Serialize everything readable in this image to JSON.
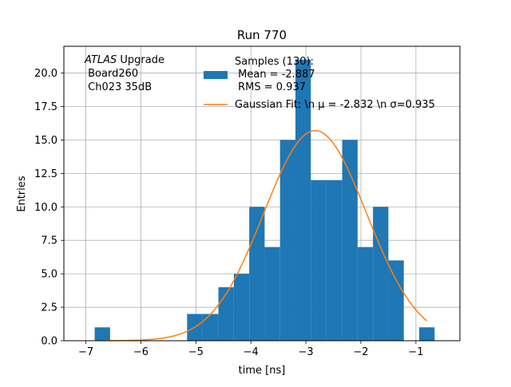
{
  "chart_data": {
    "type": "bar",
    "title": "Run 770",
    "xlabel": "time [ns]",
    "ylabel": "Entries",
    "xlim": [
      -7.4,
      -0.2
    ],
    "ylim": [
      0,
      22
    ],
    "grid": true,
    "x_ticks": [
      -7,
      -6,
      -5,
      -4,
      -3,
      -2,
      -1
    ],
    "x_tick_labels": [
      "−7",
      "−6",
      "−5",
      "−4",
      "−3",
      "−2",
      "−1"
    ],
    "y_ticks": [
      0,
      2.5,
      5,
      7.5,
      10,
      12.5,
      15,
      17.5,
      20
    ],
    "y_tick_labels": [
      "0.0",
      "2.5",
      "5.0",
      "7.5",
      "10.0",
      "12.5",
      "15.0",
      "17.5",
      "20.0"
    ],
    "bar_color": "#1f77b4",
    "fit_color": "#ff7f0e",
    "bins": [
      {
        "x0": -6.84,
        "x1": -6.56,
        "count": 1
      },
      {
        "x0": -5.16,
        "x1": -4.88,
        "count": 2
      },
      {
        "x0": -4.88,
        "x1": -4.59,
        "count": 2
      },
      {
        "x0": -4.59,
        "x1": -4.31,
        "count": 4
      },
      {
        "x0": -4.31,
        "x1": -4.03,
        "count": 5
      },
      {
        "x0": -4.03,
        "x1": -3.75,
        "count": 10
      },
      {
        "x0": -3.75,
        "x1": -3.47,
        "count": 7
      },
      {
        "x0": -3.47,
        "x1": -3.19,
        "count": 15
      },
      {
        "x0": -3.19,
        "x1": -2.91,
        "count": 21
      },
      {
        "x0": -2.91,
        "x1": -2.63,
        "count": 12
      },
      {
        "x0": -2.63,
        "x1": -2.34,
        "count": 12
      },
      {
        "x0": -2.34,
        "x1": -2.06,
        "count": 15
      },
      {
        "x0": -2.06,
        "x1": -1.78,
        "count": 7
      },
      {
        "x0": -1.78,
        "x1": -1.5,
        "count": 10
      },
      {
        "x0": -1.5,
        "x1": -1.22,
        "count": 6
      },
      {
        "x0": -0.94,
        "x1": -0.66,
        "count": 1
      }
    ],
    "fit": {
      "mu": -2.832,
      "sigma": 0.935,
      "amplitude": 15.7,
      "x_range": [
        -6.7,
        -0.8
      ]
    },
    "annotation": {
      "atlas_label": "ATLAS",
      "line1_suffix": " Upgrade",
      "line2": " Board260",
      "line3": " Ch023 35dB"
    },
    "legend": {
      "placement": "top-right",
      "samples_line1": "Samples (130):",
      "samples_line2": " Mean = -2.887",
      "samples_line3": " RMS = 0.937",
      "fit_label": "Gaussian Fit: \\n μ = -2.832 \\n σ=0.935"
    }
  }
}
